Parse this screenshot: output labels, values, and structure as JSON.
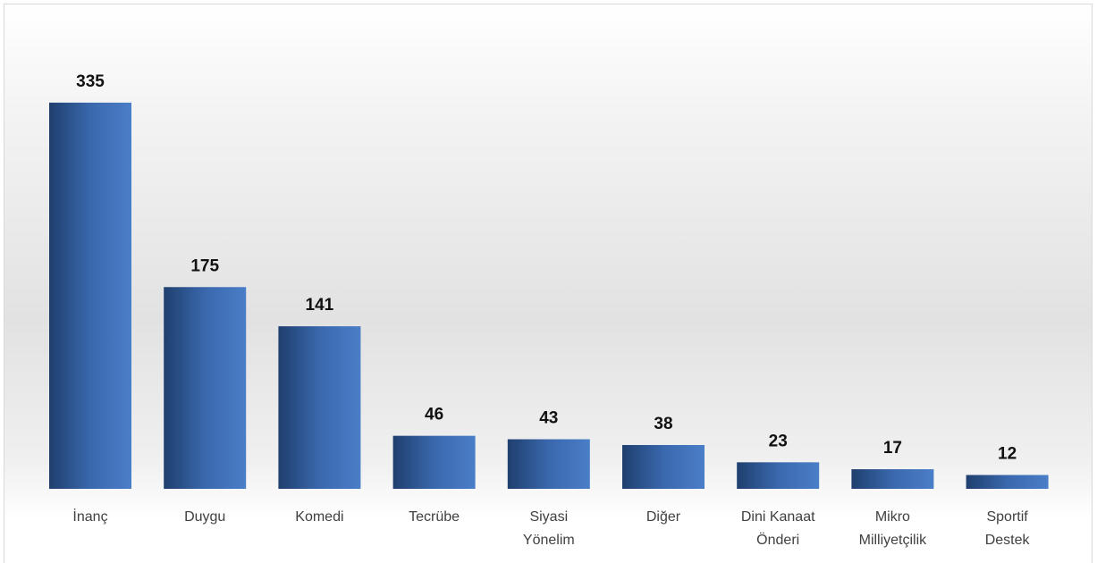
{
  "chart_data": {
    "type": "bar",
    "categories": [
      "İnanç",
      "Duygu",
      "Komedi",
      "Tecrübe",
      "Siyasi Yönelim",
      "Diğer",
      "Dini Kanaat Önderi",
      "Mikro Milliyetçilik",
      "Sportif Destek"
    ],
    "values": [
      335,
      175,
      141,
      46,
      43,
      38,
      23,
      17,
      12
    ],
    "color": "#4a7ec8"
  }
}
